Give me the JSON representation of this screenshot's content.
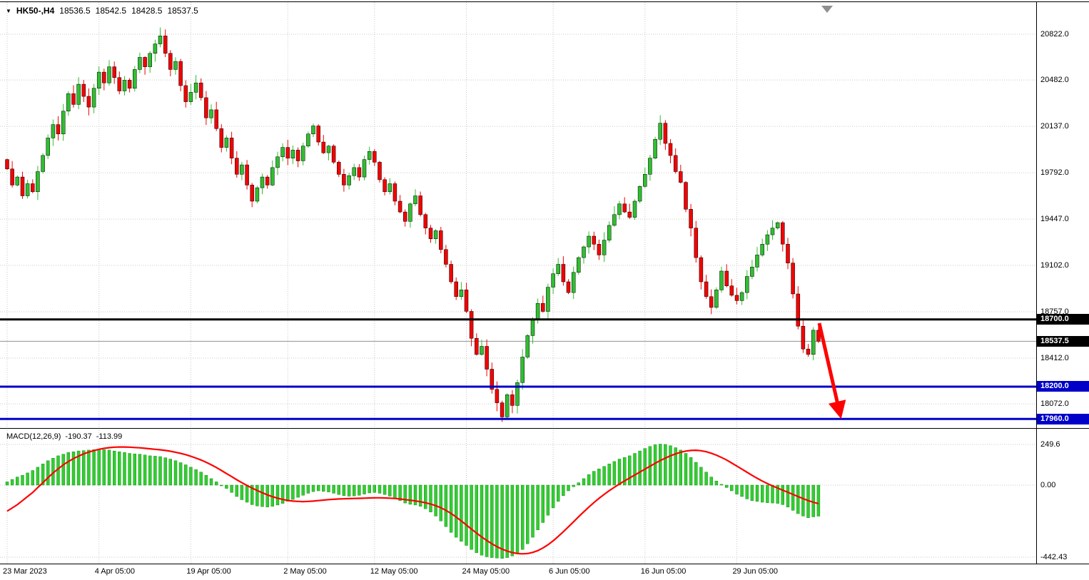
{
  "window": {
    "symbol_period": "HK50-,H4",
    "open": "18536.5",
    "high": "18542.5",
    "low": "18428.5",
    "close": "18537.5"
  },
  "indicator": {
    "name": "MACD(12,26,9)",
    "main_value": "-190.37",
    "signal_value": "-113.99"
  },
  "price_axis": {
    "ticks": [
      "20822.0",
      "20482.0",
      "20137.0",
      "19792.0",
      "19447.0",
      "19102.0",
      "18757.0",
      "18412.0",
      "18072.0"
    ],
    "tags": [
      {
        "text": "18700.0",
        "bg": "#000000"
      },
      {
        "text": "18537.5",
        "bg": "#000000"
      },
      {
        "text": "18200.0",
        "bg": "#0000C8"
      },
      {
        "text": "17960.0",
        "bg": "#0000C8"
      }
    ]
  },
  "macd_axis": {
    "ticks": [
      "249.6",
      "0.00",
      "-442.43"
    ]
  },
  "time_axis": {
    "labels": [
      {
        "text": "23 Mar 2023",
        "i": 0
      },
      {
        "text": "4 Apr 05:00",
        "i": 18
      },
      {
        "text": "19 Apr 05:00",
        "i": 36
      },
      {
        "text": "2 May 05:00",
        "i": 55
      },
      {
        "text": "12 May 05:00",
        "i": 72
      },
      {
        "text": "24 May 05:00",
        "i": 90
      },
      {
        "text": "6 Jun 05:00",
        "i": 107
      },
      {
        "text": "16 Jun 05:00",
        "i": 125
      },
      {
        "text": "29 Jun 05:00",
        "i": 143
      }
    ]
  },
  "levels": [
    {
      "price": 18700,
      "color": "#000000",
      "width": 3
    },
    {
      "price": 18200,
      "color": "#0000C8",
      "width": 3
    },
    {
      "price": 17960,
      "color": "#0000C8",
      "width": 3
    }
  ],
  "current_price": 18537.5,
  "colors": {
    "up": "#2FBF2F",
    "down": "#F40000",
    "macd_bar": "#32CD32",
    "signal": "#FF0000",
    "grid": "#C9C9C9",
    "arrow": "#FF0000",
    "current_price_line": "#909090"
  },
  "chart_data": {
    "type": "candlestick",
    "title": "HK50-,H4",
    "ylim": [
      17800,
      20950
    ],
    "first_open": 19890,
    "closes": [
      19820,
      19700,
      19760,
      19620,
      19710,
      19650,
      19800,
      19920,
      20050,
      20150,
      20080,
      20250,
      20380,
      20300,
      20450,
      20360,
      20280,
      20420,
      20540,
      20460,
      20580,
      20500,
      20400,
      20480,
      20420,
      20560,
      20650,
      20580,
      20680,
      20750,
      20810,
      20680,
      20560,
      20620,
      20440,
      20320,
      20390,
      20460,
      20350,
      20200,
      20260,
      20120,
      19980,
      20050,
      19900,
      19780,
      19850,
      19700,
      19580,
      19680,
      19760,
      19700,
      19830,
      19910,
      19980,
      19900,
      19960,
      19880,
      19990,
      20080,
      20140,
      20020,
      19940,
      19990,
      19870,
      19780,
      19700,
      19770,
      19830,
      19760,
      19890,
      19950,
      19870,
      19740,
      19650,
      19710,
      19580,
      19500,
      19430,
      19560,
      19620,
      19480,
      19380,
      19300,
      19360,
      19220,
      19110,
      18980,
      18870,
      18920,
      18760,
      18560,
      18440,
      18500,
      18330,
      18180,
      18080,
      17975,
      18140,
      18060,
      18230,
      18420,
      18580,
      18700,
      18820,
      18760,
      18940,
      19040,
      19110,
      18980,
      18900,
      19050,
      19160,
      19240,
      19320,
      19260,
      19180,
      19290,
      19400,
      19480,
      19560,
      19500,
      19460,
      19580,
      19690,
      19780,
      19900,
      20040,
      20160,
      20010,
      19920,
      19800,
      19720,
      19520,
      19380,
      19160,
      18980,
      18870,
      18790,
      18920,
      19060,
      18950,
      18880,
      18840,
      18900,
      19020,
      19090,
      19180,
      19260,
      19330,
      19380,
      19420,
      19260,
      19120,
      18890,
      18650,
      18480,
      18440,
      18620,
      18537.5
    ],
    "macd": {
      "type": "bar+line",
      "params": "12,26,9",
      "ylim": [
        -480,
        280
      ],
      "current_main": -190.37,
      "current_signal": -113.99,
      "histogram": [
        20,
        35,
        50,
        60,
        75,
        90,
        110,
        130,
        150,
        165,
        180,
        190,
        200,
        205,
        210,
        212,
        215,
        218,
        220,
        218,
        215,
        210,
        205,
        200,
        195,
        192,
        190,
        185,
        180,
        178,
        175,
        168,
        160,
        150,
        138,
        125,
        110,
        95,
        80,
        60,
        40,
        20,
        0,
        -20,
        -45,
        -70,
        -90,
        -105,
        -120,
        -128,
        -132,
        -135,
        -130,
        -122,
        -112,
        -100,
        -88,
        -75,
        -62,
        -50,
        -40,
        -35,
        -38,
        -42,
        -50,
        -58,
        -65,
        -68,
        -66,
        -62,
        -55,
        -48,
        -45,
        -50,
        -58,
        -68,
        -80,
        -95,
        -110,
        -118,
        -122,
        -130,
        -145,
        -165,
        -190,
        -220,
        -255,
        -290,
        -320,
        -345,
        -370,
        -395,
        -415,
        -430,
        -440,
        -445,
        -448,
        -450,
        -445,
        -435,
        -420,
        -395,
        -360,
        -320,
        -275,
        -230,
        -185,
        -140,
        -100,
        -65,
        -35,
        -10,
        15,
        40,
        65,
        85,
        100,
        115,
        130,
        145,
        160,
        170,
        180,
        195,
        210,
        225,
        238,
        248,
        252,
        250,
        242,
        230,
        215,
        195,
        170,
        140,
        110,
        80,
        50,
        25,
        5,
        -15,
        -35,
        -55,
        -70,
        -85,
        -95,
        -100,
        -105,
        -108,
        -110,
        -112,
        -120,
        -135,
        -155,
        -175,
        -190,
        -200,
        -195,
        -190.37
      ],
      "signal": [
        -160,
        -140,
        -120,
        -95,
        -70,
        -45,
        -15,
        15,
        45,
        75,
        100,
        125,
        145,
        163,
        178,
        192,
        203,
        212,
        220,
        226,
        230,
        233,
        234,
        234,
        233,
        231,
        229,
        226,
        223,
        220,
        217,
        213,
        208,
        202,
        195,
        187,
        177,
        166,
        154,
        140,
        125,
        108,
        90,
        71,
        52,
        33,
        15,
        -2,
        -18,
        -33,
        -47,
        -60,
        -71,
        -80,
        -88,
        -94,
        -98,
        -100,
        -101,
        -100,
        -98,
        -95,
        -92,
        -89,
        -87,
        -85,
        -84,
        -83,
        -82,
        -81,
        -80,
        -79,
        -78,
        -78,
        -79,
        -80,
        -82,
        -85,
        -89,
        -93,
        -97,
        -102,
        -108,
        -116,
        -126,
        -139,
        -155,
        -174,
        -196,
        -220,
        -245,
        -270,
        -295,
        -318,
        -340,
        -360,
        -378,
        -393,
        -405,
        -414,
        -420,
        -422,
        -420,
        -413,
        -402,
        -386,
        -366,
        -342,
        -315,
        -286,
        -256,
        -225,
        -194,
        -164,
        -135,
        -107,
        -81,
        -57,
        -34,
        -13,
        7,
        26,
        44,
        62,
        80,
        98,
        116,
        134,
        151,
        166,
        180,
        192,
        202,
        209,
        213,
        214,
        211,
        205,
        196,
        184,
        170,
        154,
        136,
        117,
        98,
        79,
        60,
        42,
        25,
        9,
        -5,
        -18,
        -31,
        -44,
        -57,
        -70,
        -83,
        -95,
        -105,
        -113.99
      ]
    },
    "annotations": [
      {
        "type": "arrow",
        "color": "#FF0000",
        "from": {
          "x": 1148,
          "y": 450
        },
        "to": {
          "x": 1177,
          "y": 577
        }
      }
    ]
  }
}
